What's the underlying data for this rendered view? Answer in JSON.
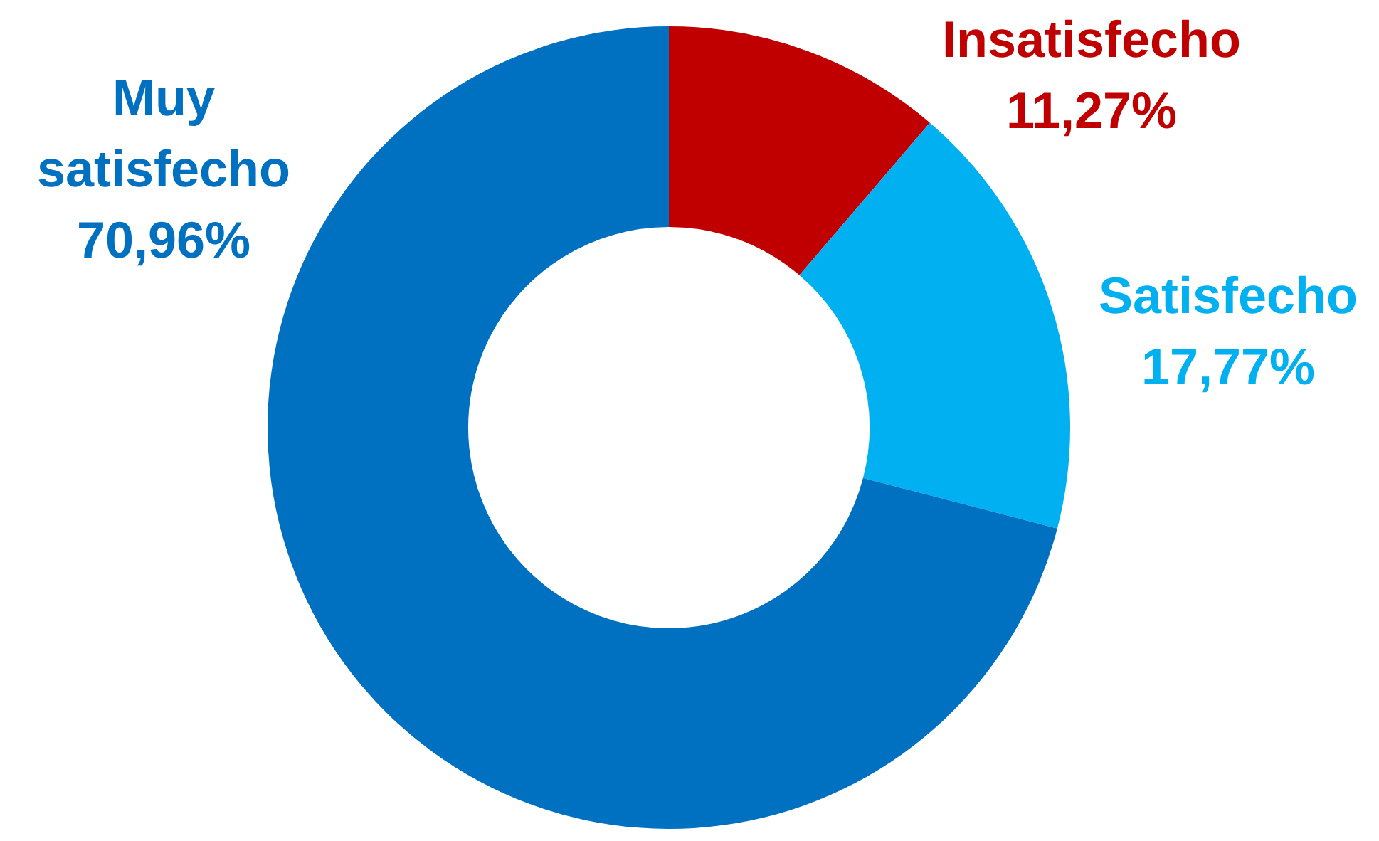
{
  "chart_data": {
    "type": "donut",
    "categories": [
      "Insatisfecho",
      "Satisfecho",
      "Muy satisfecho"
    ],
    "values": [
      11.27,
      17.77,
      70.96
    ],
    "value_labels": [
      "11,27%",
      "17,77%",
      "70,96%"
    ],
    "colors": [
      "#c00000",
      "#00b0f0",
      "#0070c0"
    ],
    "legend": false
  }
}
